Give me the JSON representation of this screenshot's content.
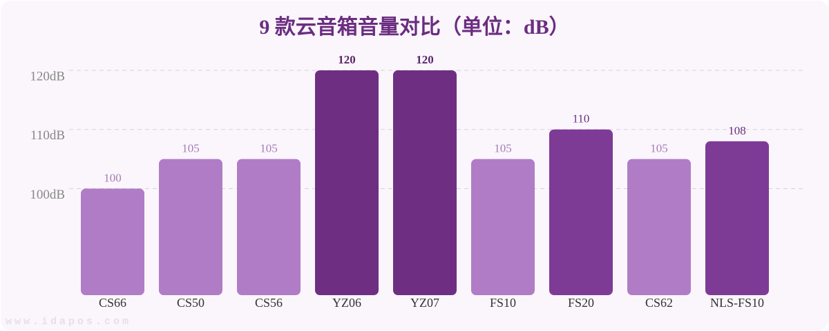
{
  "chart_data": {
    "type": "bar",
    "title": "9 款云音箱音量对比（单位：dB）",
    "categories": [
      "CS66",
      "CS50",
      "CS56",
      "YZ06",
      "YZ07",
      "FS10",
      "FS20",
      "CS62",
      "NLS-FS10"
    ],
    "values": [
      100,
      105,
      105,
      120,
      120,
      105,
      110,
      105,
      108
    ],
    "colors": [
      "#b07cc6",
      "#b07cc6",
      "#b07cc6",
      "#6e2f82",
      "#6e2f82",
      "#b07cc6",
      "#7d3b96",
      "#b07cc6",
      "#7d3b96"
    ],
    "ylim": [
      82,
      122
    ],
    "yticks": [
      {
        "value": 100,
        "label": "100dB"
      },
      {
        "value": 110,
        "label": "110dB"
      },
      {
        "value": 120,
        "label": "120dB"
      }
    ],
    "grid": true,
    "watermark": "www.idapos.com"
  }
}
